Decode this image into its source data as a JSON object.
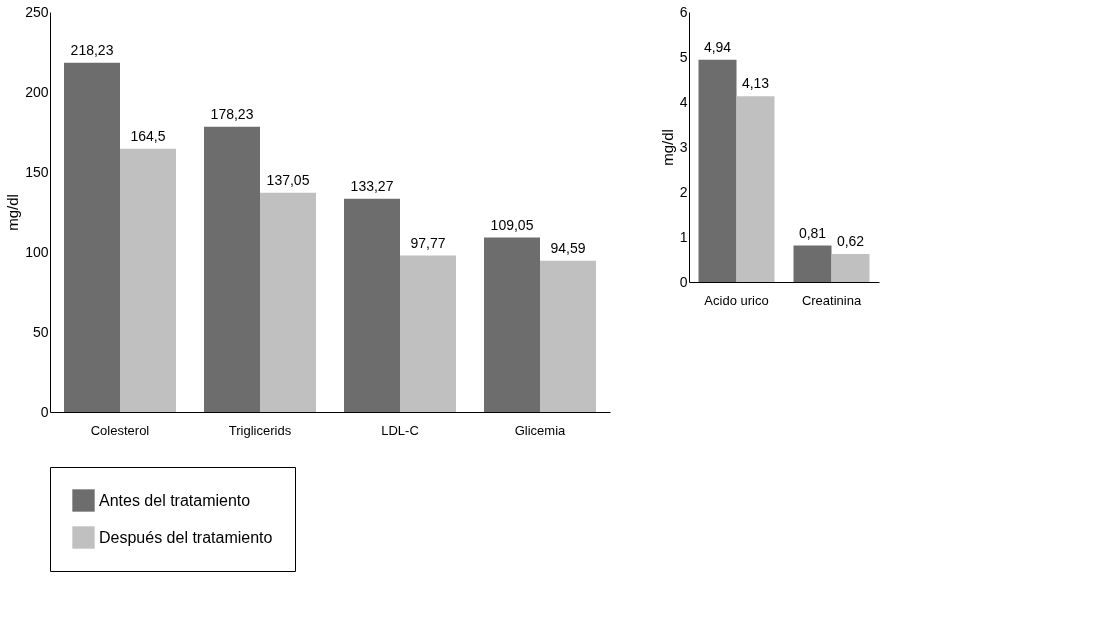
{
  "chart_data": [
    {
      "type": "bar",
      "ylabel": "mg/dl",
      "categories": [
        "Colesterol",
        "Triglicerids",
        "LDL-C",
        "Glicemia"
      ],
      "ylim": [
        0,
        250
      ],
      "yticks": [
        0,
        50,
        100,
        150,
        200,
        250
      ],
      "grid": false,
      "legend": "bottom",
      "series": [
        {
          "name": "Antes del tratamiento",
          "color": "#6d6d6d",
          "values": [
            218.23,
            178.23,
            133.27,
            109.05
          ],
          "value_labels": [
            "218,23",
            "178,23",
            "133,27",
            "109,05"
          ]
        },
        {
          "name": "Después del tratamiento",
          "color": "#c0c0c0",
          "values": [
            164.5,
            137.05,
            97.77,
            94.59
          ],
          "value_labels": [
            "164,5",
            "137,05",
            "97,77",
            "94,59"
          ]
        }
      ]
    },
    {
      "type": "bar",
      "ylabel": "mg/dl",
      "categories": [
        "Acido urico",
        "Creatinina"
      ],
      "ylim": [
        0,
        6
      ],
      "yticks": [
        0,
        1,
        2,
        3,
        4,
        5,
        6
      ],
      "grid": false,
      "legend": "bottom",
      "series": [
        {
          "color": "#6d6d6d",
          "values": [
            4.94,
            0.81
          ],
          "value_labels": [
            "4,94",
            "0,81"
          ]
        },
        {
          "color": "#c0c0c0",
          "values": [
            4.13,
            0.62
          ],
          "value_labels": [
            "4,13",
            "0,62"
          ]
        }
      ]
    }
  ]
}
